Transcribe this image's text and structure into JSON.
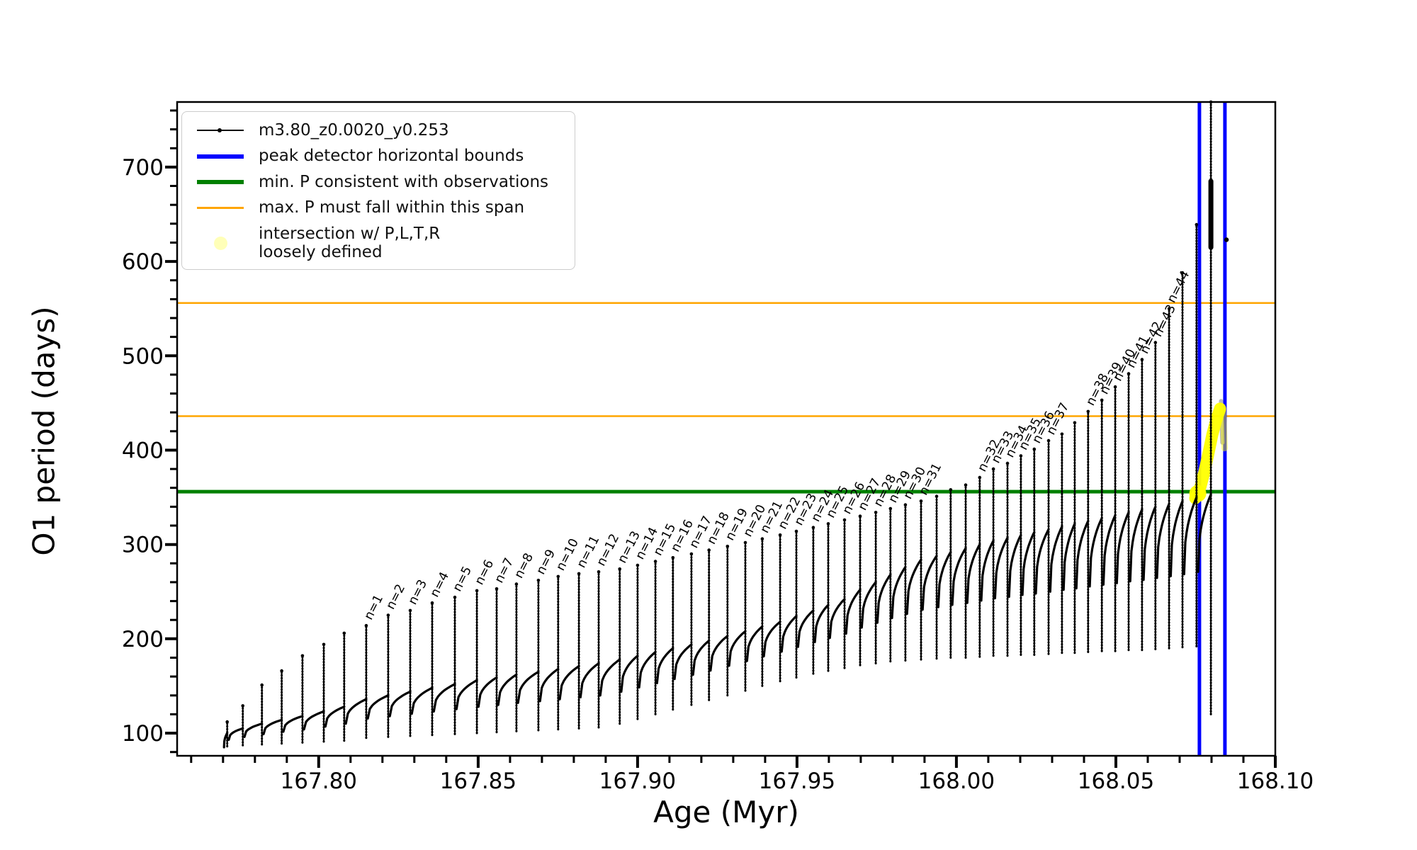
{
  "legend": {
    "items": [
      {
        "swatch": "line-dot",
        "color": "#000000",
        "label": "m3.80_z0.0020_y0.253"
      },
      {
        "swatch": "thick-line",
        "color": "#0000ff",
        "label": "peak detector horizontal bounds"
      },
      {
        "swatch": "thick-line",
        "color": "#008000",
        "label": "min. P consistent with observations"
      },
      {
        "swatch": "thin-line",
        "color": "#ffa500",
        "label": "max. P must fall within this span"
      },
      {
        "swatch": "pale-dot",
        "color": "#ffff00",
        "label": "intersection w/ P,L,T,R\nloosely defined"
      }
    ]
  },
  "chart_data": {
    "type": "line",
    "title": "",
    "xlabel": "Age (Myr)",
    "ylabel": "O1 period (days)",
    "xlim": [
      167.7556,
      168.1
    ],
    "ylim": [
      76,
      769
    ],
    "grid": false,
    "x_major_ticks": [
      167.8,
      167.85,
      167.9,
      167.95,
      168.0,
      168.05,
      168.1
    ],
    "x_major_labels": [
      "167.80",
      "167.85",
      "167.90",
      "167.95",
      "168.00",
      "168.05",
      "168.10"
    ],
    "x_minor_step": 0.01,
    "y_major_ticks": [
      100,
      200,
      300,
      400,
      500,
      600,
      700
    ],
    "y_minor_step": 20,
    "series_name": "m3.80_z0.0020_y0.253",
    "series_color": "#000000",
    "teeth_note": "each tooth: [pulse_number_or_null, age_Myr, peak_period, baseline_period, tail_low_period]",
    "teeth": [
      [
        null,
        167.7713,
        112,
        100,
        86
      ],
      [
        null,
        167.7762,
        129,
        105,
        87
      ],
      [
        null,
        167.7822,
        151,
        110,
        88
      ],
      [
        null,
        167.7884,
        166,
        114,
        89
      ],
      [
        null,
        167.7949,
        182,
        118,
        90
      ],
      [
        null,
        167.8016,
        194,
        123,
        91
      ],
      [
        null,
        167.808,
        206,
        128,
        92
      ],
      [
        1,
        167.8149,
        214,
        136,
        95
      ],
      [
        2,
        167.8218,
        225,
        140,
        96
      ],
      [
        3,
        167.8287,
        230,
        144,
        97
      ],
      [
        4,
        167.8356,
        238,
        148,
        98
      ],
      [
        5,
        167.8427,
        244,
        152,
        99
      ],
      [
        6,
        167.8496,
        251,
        156,
        100
      ],
      [
        7,
        167.8558,
        253,
        159,
        101
      ],
      [
        8,
        167.862,
        258,
        162,
        102
      ],
      [
        9,
        167.8689,
        262,
        165,
        103
      ],
      [
        10,
        167.8751,
        266,
        168,
        104
      ],
      [
        11,
        167.8816,
        269,
        171,
        105
      ],
      [
        12,
        167.8878,
        271,
        174,
        106
      ],
      [
        13,
        167.8944,
        274,
        178,
        110
      ],
      [
        14,
        167.9,
        278,
        182,
        115
      ],
      [
        15,
        167.9056,
        282,
        186,
        120
      ],
      [
        16,
        167.9111,
        286,
        190,
        125
      ],
      [
        17,
        167.9169,
        290,
        194,
        130
      ],
      [
        18,
        167.9224,
        294,
        198,
        135
      ],
      [
        19,
        167.9282,
        298,
        203,
        140
      ],
      [
        20,
        167.9338,
        302,
        208,
        145
      ],
      [
        21,
        167.9391,
        306,
        213,
        150
      ],
      [
        22,
        167.9447,
        310,
        218,
        155
      ],
      [
        23,
        167.9498,
        314,
        224,
        159
      ],
      [
        24,
        167.9551,
        318,
        230,
        163
      ],
      [
        25,
        167.9598,
        322,
        236,
        166
      ],
      [
        26,
        167.9649,
        326,
        242,
        169
      ],
      [
        27,
        167.9698,
        330,
        252,
        172
      ],
      [
        28,
        167.9747,
        334,
        260,
        174
      ],
      [
        29,
        167.9793,
        338,
        268,
        176
      ],
      [
        30,
        167.984,
        342,
        276,
        177
      ],
      [
        31,
        167.9889,
        346,
        284,
        178
      ],
      [
        null,
        167.9938,
        351,
        288,
        179
      ],
      [
        null,
        167.9982,
        358,
        292,
        180
      ],
      [
        null,
        168.0029,
        363,
        296,
        180
      ],
      [
        32,
        168.0073,
        371,
        300,
        181
      ],
      [
        33,
        168.0116,
        380,
        304,
        182
      ],
      [
        34,
        168.016,
        386,
        307,
        182
      ],
      [
        35,
        168.0202,
        394,
        310,
        183
      ],
      [
        36,
        168.0244,
        401,
        313,
        183
      ],
      [
        37,
        168.0289,
        410,
        316,
        184
      ],
      [
        null,
        168.0331,
        417,
        319,
        185
      ],
      [
        null,
        168.0371,
        429,
        322,
        185
      ],
      [
        38,
        168.0413,
        441,
        325,
        186
      ],
      [
        39,
        168.0456,
        453,
        328,
        187
      ],
      [
        40,
        168.0498,
        467,
        331,
        187
      ],
      [
        41,
        168.054,
        481,
        334,
        188
      ],
      [
        42,
        168.0582,
        496,
        337,
        188
      ],
      [
        43,
        168.0624,
        514,
        340,
        189
      ],
      [
        44,
        168.0667,
        550,
        343,
        190
      ],
      [
        null,
        168.0709,
        588,
        346,
        191
      ],
      [
        null,
        168.0753,
        639,
        350,
        192
      ],
      [
        null,
        168.0798,
        769,
        353,
        120
      ]
    ],
    "pulse_label_prefix": "n=",
    "vlines": {
      "label": "peak detector horizontal bounds",
      "color": "#0000ff",
      "x": [
        168.0762,
        168.0842
      ],
      "width": 5
    },
    "hlines": [
      {
        "label": "min. P consistent with observations",
        "color": "#008000",
        "y": 356,
        "width": 5
      },
      {
        "label": "max. P must fall within this span",
        "color": "#ffa500",
        "y": 436,
        "width": 2.5
      },
      {
        "label": "max. P must fall within this span",
        "color": "#ffa500",
        "y": 556,
        "width": 2.5
      }
    ],
    "intersection_track": {
      "label": "intersection w/ P,L,T,R loosely defined",
      "color": "#ffff00",
      "points": [
        [
          168.0749,
          349
        ],
        [
          168.0757,
          354
        ],
        [
          168.0766,
          362
        ],
        [
          168.0777,
          376
        ],
        [
          168.079,
          396
        ],
        [
          168.0803,
          417
        ],
        [
          168.0815,
          432
        ],
        [
          168.0827,
          444
        ]
      ],
      "pale_streak": [
        [
          168.0836,
          443
        ],
        [
          168.0841,
          402
        ]
      ],
      "gray_streak": [
        [
          168.083,
          452
        ],
        [
          168.0834,
          408
        ]
      ]
    },
    "extra_points": [
      [
        168.0847,
        623
      ]
    ],
    "tall_spike_blob": {
      "age": 168.0798,
      "period_range": [
        615,
        685
      ]
    }
  }
}
